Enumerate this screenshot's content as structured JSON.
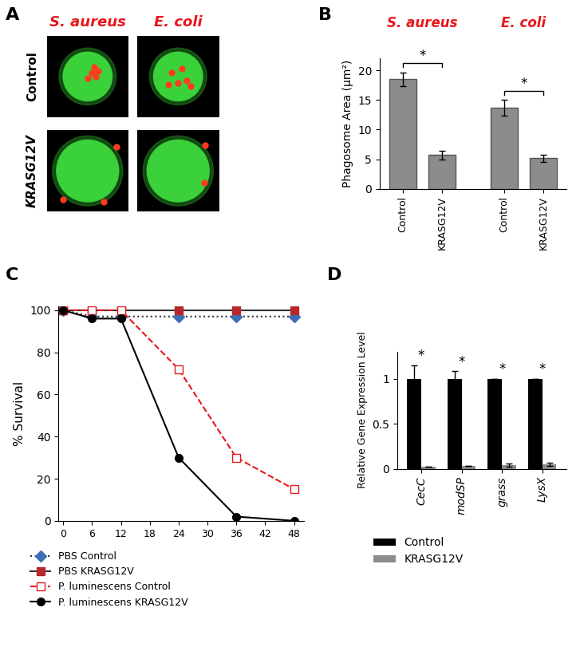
{
  "panel_labels": [
    "A",
    "B",
    "C",
    "D"
  ],
  "micrographs": {
    "type": "image_grid",
    "columns": [
      "S. aureus",
      "E. coli"
    ],
    "rows": [
      "Control",
      "KRASG12V"
    ]
  },
  "chart_data": [
    {
      "type": "bar",
      "y_label": "Phagosome Area (μm²)",
      "groups": [
        "S. aureus",
        "E. coli"
      ],
      "categories": [
        "Control",
        "KRASG12V",
        "Control",
        "KRASG12V"
      ],
      "values": [
        18.5,
        5.7,
        13.7,
        5.2
      ],
      "errors": [
        1.2,
        0.7,
        1.3,
        0.6
      ],
      "color": "#8c8c8c",
      "annotations": [
        "*",
        "*"
      ],
      "ylim": [
        0,
        22
      ],
      "yticks": [
        0,
        5,
        10,
        15,
        20
      ]
    },
    {
      "type": "line",
      "y_label": "% Survival",
      "x": [
        0,
        6,
        12,
        24,
        36,
        48
      ],
      "xlim": [
        -1,
        50
      ],
      "xticks": [
        0,
        6,
        12,
        18,
        24,
        30,
        36,
        42,
        48
      ],
      "ylim": [
        0,
        102
      ],
      "yticks": [
        0,
        20,
        40,
        60,
        80,
        100
      ],
      "legend": "below",
      "series": [
        {
          "name": "PBS Control",
          "color": "#3a6fb5",
          "marker": "diamond",
          "line_style": "dotted",
          "values": [
            100,
            97,
            97,
            97,
            97,
            97
          ]
        },
        {
          "name": "PBS KRASG12V",
          "color": "#b5282b",
          "marker": "square",
          "line_style": "solid",
          "values": [
            100,
            100,
            100,
            100,
            100,
            100
          ]
        },
        {
          "name": "P. luminescens Control",
          "color": "#e8161b",
          "marker": "open_square",
          "line_style": "dashed",
          "values": [
            100,
            100,
            100,
            72,
            30,
            15
          ]
        },
        {
          "name": "P. luminescens KRASG12V",
          "color": "#000000",
          "marker": "circle",
          "line_style": "solid",
          "values": [
            100,
            96,
            96,
            30,
            2,
            0
          ]
        }
      ]
    },
    {
      "type": "bar",
      "y_label": "Relative Gene Expression Level",
      "categories": [
        "CecC",
        "modSP",
        "grass",
        "LysX"
      ],
      "series": [
        {
          "name": "Control",
          "color": "#000000",
          "values": [
            1,
            1,
            1,
            1
          ],
          "errors": [
            0.15,
            0.08,
            0.0,
            0.0
          ]
        },
        {
          "name": "KRASG12V",
          "color": "#8c8c8c",
          "values": [
            0.02,
            0.03,
            0.04,
            0.05
          ],
          "errors": [
            0.0,
            0.0,
            0.02,
            0.02
          ]
        }
      ],
      "annotations": [
        "*",
        "*",
        "*",
        "*"
      ],
      "ylim": [
        0,
        1.3
      ],
      "yticks": [
        0,
        0.5,
        1
      ],
      "legend": "below"
    }
  ]
}
